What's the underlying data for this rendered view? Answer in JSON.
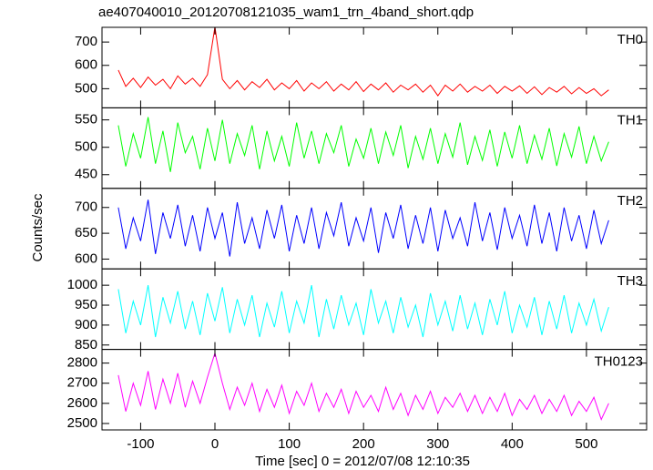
{
  "chart_data": {
    "type": "line",
    "title": "ae407040010_20120708121035_wam1_trn_4band_short.qdp",
    "xlabel": "Time [sec] 0 = 2012/07/08 12:10:35",
    "ylabel": "Counts/sec",
    "xlim": [
      -152,
      581
    ],
    "xticks": [
      -100,
      0,
      100,
      200,
      300,
      400,
      500
    ],
    "x": [
      -130,
      -120,
      -110,
      -100,
      -90,
      -80,
      -70,
      -60,
      -50,
      -40,
      -30,
      -20,
      -10,
      0,
      10,
      20,
      30,
      40,
      50,
      60,
      70,
      80,
      90,
      100,
      110,
      120,
      130,
      140,
      150,
      160,
      170,
      180,
      190,
      200,
      210,
      220,
      230,
      240,
      250,
      260,
      270,
      280,
      290,
      300,
      310,
      320,
      330,
      340,
      350,
      360,
      370,
      380,
      390,
      400,
      410,
      420,
      430,
      440,
      450,
      460,
      470,
      480,
      490,
      500,
      510,
      520,
      530
    ],
    "panels": [
      {
        "label": "TH0",
        "color": "#ff0000",
        "ylim": [
          418,
          763
        ],
        "yticks": [
          500,
          600,
          700
        ],
        "values": [
          580,
          510,
          545,
          505,
          550,
          515,
          540,
          500,
          555,
          520,
          545,
          510,
          560,
          765,
          540,
          500,
          535,
          495,
          530,
          505,
          540,
          495,
          525,
          500,
          535,
          490,
          525,
          500,
          530,
          490,
          520,
          495,
          530,
          488,
          520,
          495,
          525,
          485,
          515,
          495,
          520,
          485,
          515,
          470,
          515,
          490,
          520,
          485,
          510,
          490,
          515,
          480,
          510,
          490,
          512,
          480,
          508,
          475,
          505,
          485,
          510,
          478,
          505,
          480,
          500,
          470,
          495
        ]
      },
      {
        "label": "TH1",
        "color": "#00ff00",
        "ylim": [
          425,
          572
        ],
        "yticks": [
          450,
          500,
          550
        ],
        "values": [
          540,
          465,
          525,
          480,
          555,
          470,
          530,
          455,
          545,
          490,
          520,
          460,
          535,
          475,
          550,
          470,
          525,
          485,
          540,
          460,
          530,
          475,
          520,
          465,
          545,
          480,
          530,
          470,
          525,
          490,
          540,
          465,
          515,
          480,
          535,
          470,
          528,
          485,
          540,
          462,
          520,
          478,
          535,
          470,
          525,
          482,
          545,
          468,
          520,
          476,
          532,
          465,
          528,
          480,
          540,
          470,
          522,
          478,
          535,
          466,
          525,
          482,
          538,
          470,
          520,
          475,
          510
        ]
      },
      {
        "label": "TH2",
        "color": "#0000ff",
        "ylim": [
          581,
          737
        ],
        "yticks": [
          600,
          650,
          700
        ],
        "values": [
          700,
          620,
          680,
          635,
          715,
          610,
          690,
          640,
          705,
          625,
          685,
          615,
          700,
          640,
          690,
          605,
          710,
          630,
          680,
          620,
          695,
          640,
          705,
          615,
          685,
          630,
          700,
          620,
          690,
          645,
          710,
          625,
          680,
          635,
          700,
          612,
          690,
          640,
          705,
          620,
          685,
          630,
          700,
          615,
          695,
          640,
          680,
          625,
          710,
          635,
          690,
          618,
          700,
          640,
          685,
          625,
          705,
          630,
          690,
          615,
          700,
          635,
          685,
          620,
          695,
          630,
          675
        ]
      },
      {
        "label": "TH3",
        "color": "#00ffff",
        "ylim": [
          839,
          1041
        ],
        "yticks": [
          850,
          900,
          950,
          1000
        ],
        "values": [
          990,
          880,
          960,
          900,
          1000,
          870,
          970,
          905,
          985,
          890,
          960,
          875,
          980,
          910,
          995,
          880,
          965,
          900,
          975,
          870,
          955,
          895,
          985,
          880,
          960,
          905,
          1000,
          870,
          965,
          890,
          975,
          900,
          955,
          875,
          990,
          905,
          960,
          880,
          970,
          895,
          950,
          870,
          980,
          900,
          960,
          885,
          975,
          890,
          955,
          875,
          965,
          900,
          985,
          880,
          950,
          895,
          970,
          875,
          960,
          890,
          975,
          880,
          955,
          900,
          965,
          885,
          945
        ]
      },
      {
        "label": "TH0123",
        "color": "#ff00ff",
        "ylim": [
          2468,
          2868
        ],
        "yticks": [
          2500,
          2600,
          2700,
          2800
        ],
        "values": [
          2740,
          2560,
          2700,
          2590,
          2760,
          2570,
          2720,
          2600,
          2750,
          2580,
          2710,
          2600,
          2730,
          2850,
          2700,
          2570,
          2680,
          2590,
          2700,
          2560,
          2670,
          2580,
          2690,
          2550,
          2660,
          2590,
          2700,
          2560,
          2650,
          2580,
          2670,
          2550,
          2660,
          2580,
          2640,
          2560,
          2680,
          2570,
          2650,
          2540,
          2640,
          2570,
          2660,
          2550,
          2630,
          2580,
          2650,
          2560,
          2640,
          2550,
          2630,
          2560,
          2650,
          2540,
          2620,
          2570,
          2640,
          2550,
          2620,
          2560,
          2640,
          2540,
          2610,
          2560,
          2630,
          2520,
          2600
        ]
      }
    ]
  }
}
